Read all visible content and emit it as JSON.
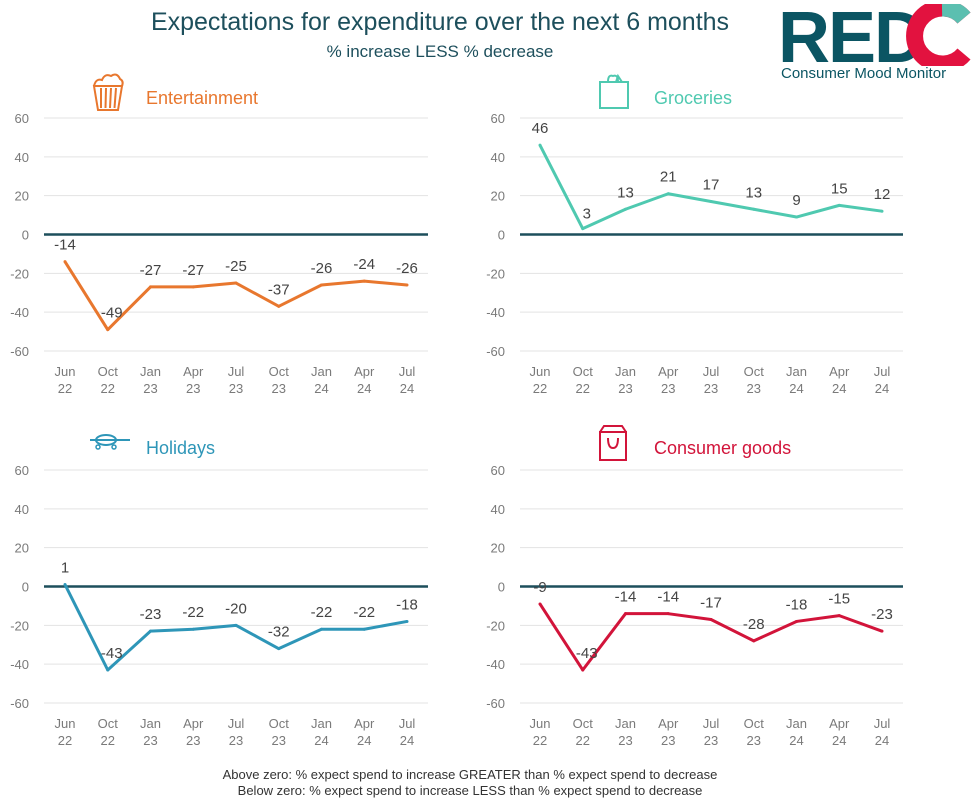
{
  "header": {
    "title": "Expectations for expenditure over the next 6 months",
    "subtitle": "% increase LESS % decrease"
  },
  "logo": {
    "text": "REDC",
    "subtitle": "Consumer Mood Monitor",
    "colors": [
      "#0b5563",
      "#e2123f",
      "#5bbfb0"
    ]
  },
  "footer": {
    "line1": "Above zero: % expect spend to increase GREATER than % expect spend to decrease",
    "line2": "Below zero: % expect spend to increase LESS than % expect spend to decrease"
  },
  "chart_data": [
    {
      "type": "line",
      "title": "Entertainment",
      "icon": "popcorn-icon",
      "color": "#e8772e",
      "categories": [
        "Jun 22",
        "Oct 22",
        "Jan 23",
        "Apr 23",
        "Jul 23",
        "Oct 23",
        "Jan 24",
        "Apr 24",
        "Jul 24"
      ],
      "values": [
        -14,
        -49,
        -27,
        -27,
        -25,
        -37,
        -26,
        -24,
        -26
      ],
      "ylim": [
        -60,
        60
      ],
      "yticks": [
        60,
        40,
        20,
        0,
        -20,
        -40,
        -60
      ],
      "grid": true
    },
    {
      "type": "line",
      "title": "Groceries",
      "icon": "shopping-bag-groceries-icon",
      "color": "#4fc9b0",
      "categories": [
        "Jun 22",
        "Oct 22",
        "Jan 23",
        "Apr 23",
        "Jul 23",
        "Oct 23",
        "Jan 24",
        "Apr 24",
        "Jul 24"
      ],
      "values": [
        46,
        3,
        13,
        21,
        17,
        13,
        9,
        15,
        12
      ],
      "ylim": [
        -60,
        60
      ],
      "yticks": [
        60,
        40,
        20,
        0,
        -20,
        -40,
        -60
      ],
      "grid": true
    },
    {
      "type": "line",
      "title": "Holidays",
      "icon": "airplane-icon",
      "color": "#2e96b8",
      "categories": [
        "Jun 22",
        "Oct 22",
        "Jan 23",
        "Apr 23",
        "Jul 23",
        "Oct 23",
        "Jan 24",
        "Apr 24",
        "Jul 24"
      ],
      "values": [
        1,
        -43,
        -23,
        -22,
        -20,
        -32,
        -22,
        -22,
        -18
      ],
      "ylim": [
        -60,
        60
      ],
      "yticks": [
        60,
        40,
        20,
        0,
        -20,
        -40,
        -60
      ],
      "grid": true
    },
    {
      "type": "line",
      "title": "Consumer goods",
      "icon": "gift-bag-icon",
      "color": "#d2143a",
      "categories": [
        "Jun 22",
        "Oct 22",
        "Jan 23",
        "Apr 23",
        "Jul 23",
        "Oct 23",
        "Jan 24",
        "Apr 24",
        "Jul 24"
      ],
      "values": [
        -9,
        -43,
        -14,
        -14,
        -17,
        -28,
        -18,
        -15,
        -23
      ],
      "ylim": [
        -60,
        60
      ],
      "yticks": [
        60,
        40,
        20,
        0,
        -20,
        -40,
        -60
      ],
      "grid": true
    }
  ]
}
